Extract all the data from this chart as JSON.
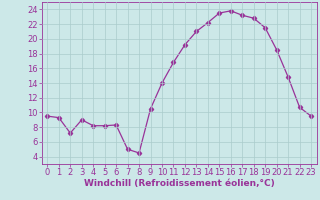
{
  "x": [
    0,
    1,
    2,
    3,
    4,
    5,
    6,
    7,
    8,
    9,
    10,
    11,
    12,
    13,
    14,
    15,
    16,
    17,
    18,
    19,
    20,
    21,
    22,
    23
  ],
  "y": [
    9.5,
    9.3,
    7.2,
    9.0,
    8.2,
    8.2,
    8.3,
    5.0,
    4.5,
    10.5,
    14.0,
    16.8,
    19.2,
    21.0,
    22.2,
    23.5,
    23.8,
    23.2,
    22.8,
    21.5,
    18.5,
    14.8,
    10.7,
    9.5
  ],
  "line_color": "#993399",
  "marker": "D",
  "marker_size": 2.2,
  "bg_color": "#cce8e8",
  "grid_color": "#aacccc",
  "xlabel": "Windchill (Refroidissement éolien,°C)",
  "xlabel_fontsize": 6.5,
  "tick_fontsize": 6.0,
  "ylim": [
    3,
    25
  ],
  "yticks": [
    4,
    6,
    8,
    10,
    12,
    14,
    16,
    18,
    20,
    22,
    24
  ],
  "xlim": [
    -0.5,
    23.5
  ],
  "xticks": [
    0,
    1,
    2,
    3,
    4,
    5,
    6,
    7,
    8,
    9,
    10,
    11,
    12,
    13,
    14,
    15,
    16,
    17,
    18,
    19,
    20,
    21,
    22,
    23
  ]
}
